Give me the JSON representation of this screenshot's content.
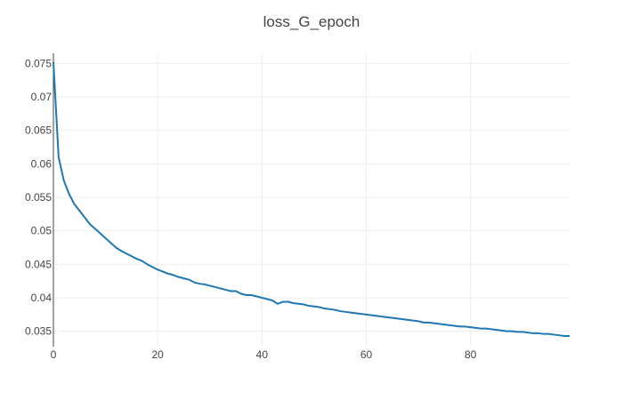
{
  "chart_data": {
    "type": "line",
    "title": "loss_G_epoch",
    "xlabel": "",
    "ylabel": "",
    "xlim": [
      0,
      99
    ],
    "ylim": [
      0.0327,
      0.0765
    ],
    "x_ticks": [
      0,
      20,
      40,
      60,
      80
    ],
    "x_tick_labels": [
      "0",
      "20",
      "40",
      "60",
      "80"
    ],
    "y_ticks": [
      0.035,
      0.04,
      0.045,
      0.05,
      0.055,
      0.06,
      0.065,
      0.07,
      0.075
    ],
    "y_tick_labels": [
      "0.035",
      "0.04",
      "0.045",
      "0.05",
      "0.055",
      "0.06",
      "0.065",
      "0.07",
      "0.075"
    ],
    "grid": true,
    "legend": "none",
    "colors": {
      "line": "#1f77b4",
      "grid": "#eeeeee",
      "axis": "#444444",
      "text": "#444444"
    },
    "series": [
      {
        "x": [
          0,
          1,
          2,
          3,
          4,
          5,
          6,
          7,
          8,
          9,
          10,
          11,
          12,
          13,
          14,
          15,
          16,
          17,
          18,
          19,
          20,
          21,
          22,
          23,
          24,
          25,
          26,
          27,
          28,
          29,
          30,
          31,
          32,
          33,
          34,
          35,
          36,
          37,
          38,
          39,
          40,
          41,
          42,
          43,
          44,
          45,
          46,
          47,
          48,
          49,
          50,
          51,
          52,
          53,
          54,
          55,
          56,
          57,
          58,
          59,
          60,
          61,
          62,
          63,
          64,
          65,
          66,
          67,
          68,
          69,
          70,
          71,
          72,
          73,
          74,
          75,
          76,
          77,
          78,
          79,
          80,
          81,
          82,
          83,
          84,
          85,
          86,
          87,
          88,
          89,
          90,
          91,
          92,
          93,
          94,
          95,
          96,
          97,
          98,
          99
        ],
        "values": [
          0.0752,
          0.061,
          0.0575,
          0.0555,
          0.054,
          0.053,
          0.052,
          0.051,
          0.0503,
          0.0496,
          0.0489,
          0.0482,
          0.0475,
          0.047,
          0.0466,
          0.0462,
          0.0458,
          0.0455,
          0.045,
          0.0446,
          0.0442,
          0.0439,
          0.0436,
          0.0434,
          0.0431,
          0.0429,
          0.0427,
          0.0423,
          0.0421,
          0.042,
          0.0418,
          0.0416,
          0.0414,
          0.0412,
          0.041,
          0.041,
          0.0406,
          0.0404,
          0.0404,
          0.0402,
          0.04,
          0.0398,
          0.0396,
          0.0391,
          0.0394,
          0.0394,
          0.0392,
          0.0391,
          0.039,
          0.0388,
          0.0387,
          0.0386,
          0.0384,
          0.0383,
          0.0382,
          0.038,
          0.0379,
          0.0378,
          0.0377,
          0.0376,
          0.0375,
          0.0374,
          0.0373,
          0.0372,
          0.0371,
          0.037,
          0.0369,
          0.0368,
          0.0367,
          0.0366,
          0.0365,
          0.0363,
          0.0363,
          0.0362,
          0.0361,
          0.036,
          0.0359,
          0.0358,
          0.0357,
          0.0357,
          0.0356,
          0.0355,
          0.0354,
          0.0354,
          0.0353,
          0.0352,
          0.0351,
          0.035,
          0.035,
          0.0349,
          0.0349,
          0.0348,
          0.0347,
          0.0347,
          0.0346,
          0.0346,
          0.0345,
          0.0344,
          0.0343,
          0.0343
        ]
      }
    ]
  }
}
